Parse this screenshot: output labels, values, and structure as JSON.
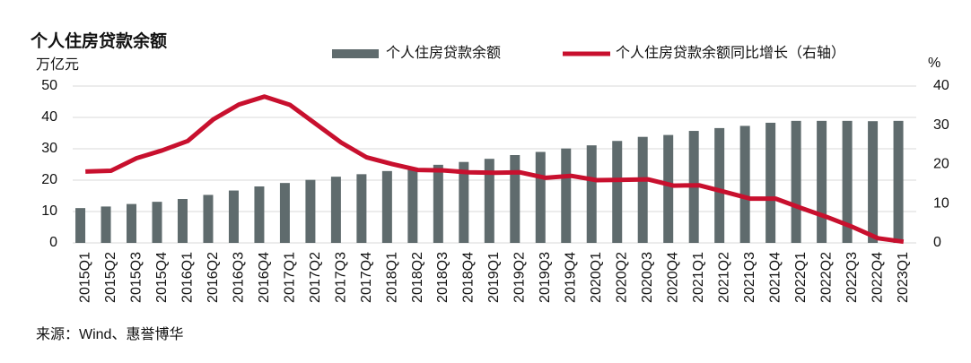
{
  "chart_data": {
    "type": "bar",
    "title": "个人住房贷款余额",
    "y_label": "万亿元",
    "y2_label": "%",
    "source": "来源：Wind、惠誉博华",
    "categories": [
      "2015Q1",
      "2015Q2",
      "2015Q3",
      "2015Q4",
      "2016Q1",
      "2016Q2",
      "2016Q3",
      "2016Q4",
      "2017Q1",
      "2017Q2",
      "2017Q3",
      "2017Q4",
      "2018Q1",
      "2018Q2",
      "2018Q3",
      "2018Q4",
      "2019Q1",
      "2019Q2",
      "2019Q3",
      "2019Q4",
      "2020Q1",
      "2020Q2",
      "2020Q3",
      "2020Q4",
      "2021Q1",
      "2021Q2",
      "2021Q3",
      "2021Q4",
      "2022Q1",
      "2022Q2",
      "2022Q3",
      "2022Q4",
      "2023Q1"
    ],
    "series": [
      {
        "name": "个人住房贷款余额",
        "type": "bar",
        "color": "#5f6b6d",
        "values": [
          11.1,
          11.6,
          12.4,
          13.1,
          14.0,
          15.3,
          16.7,
          18.0,
          19.1,
          20.1,
          21.1,
          21.9,
          22.9,
          23.8,
          24.9,
          25.8,
          26.8,
          28.0,
          29.0,
          30.1,
          31.1,
          32.5,
          33.8,
          34.4,
          35.7,
          36.6,
          37.3,
          38.3,
          38.9,
          38.9,
          38.9,
          38.8,
          38.9
        ]
      },
      {
        "name": "个人住房贷款余额同比增长（右轴）",
        "type": "line",
        "axis": "y2",
        "color": "#c8102e",
        "values": [
          18.2,
          18.4,
          21.6,
          23.6,
          26.0,
          31.5,
          35.3,
          37.3,
          35.2,
          30.4,
          25.6,
          21.8,
          20.1,
          18.6,
          18.5,
          18.0,
          17.9,
          18.0,
          16.6,
          17.1,
          16.0,
          16.1,
          16.2,
          14.6,
          14.7,
          13.0,
          11.3,
          11.3,
          8.9,
          6.6,
          4.1,
          1.2,
          0.3
        ]
      }
    ],
    "ylim": [
      0,
      50
    ],
    "yticks": [
      0,
      10,
      20,
      30,
      40,
      50
    ],
    "y2lim": [
      0,
      40
    ],
    "y2ticks": [
      0,
      10,
      20,
      30,
      40
    ],
    "grid": true
  }
}
